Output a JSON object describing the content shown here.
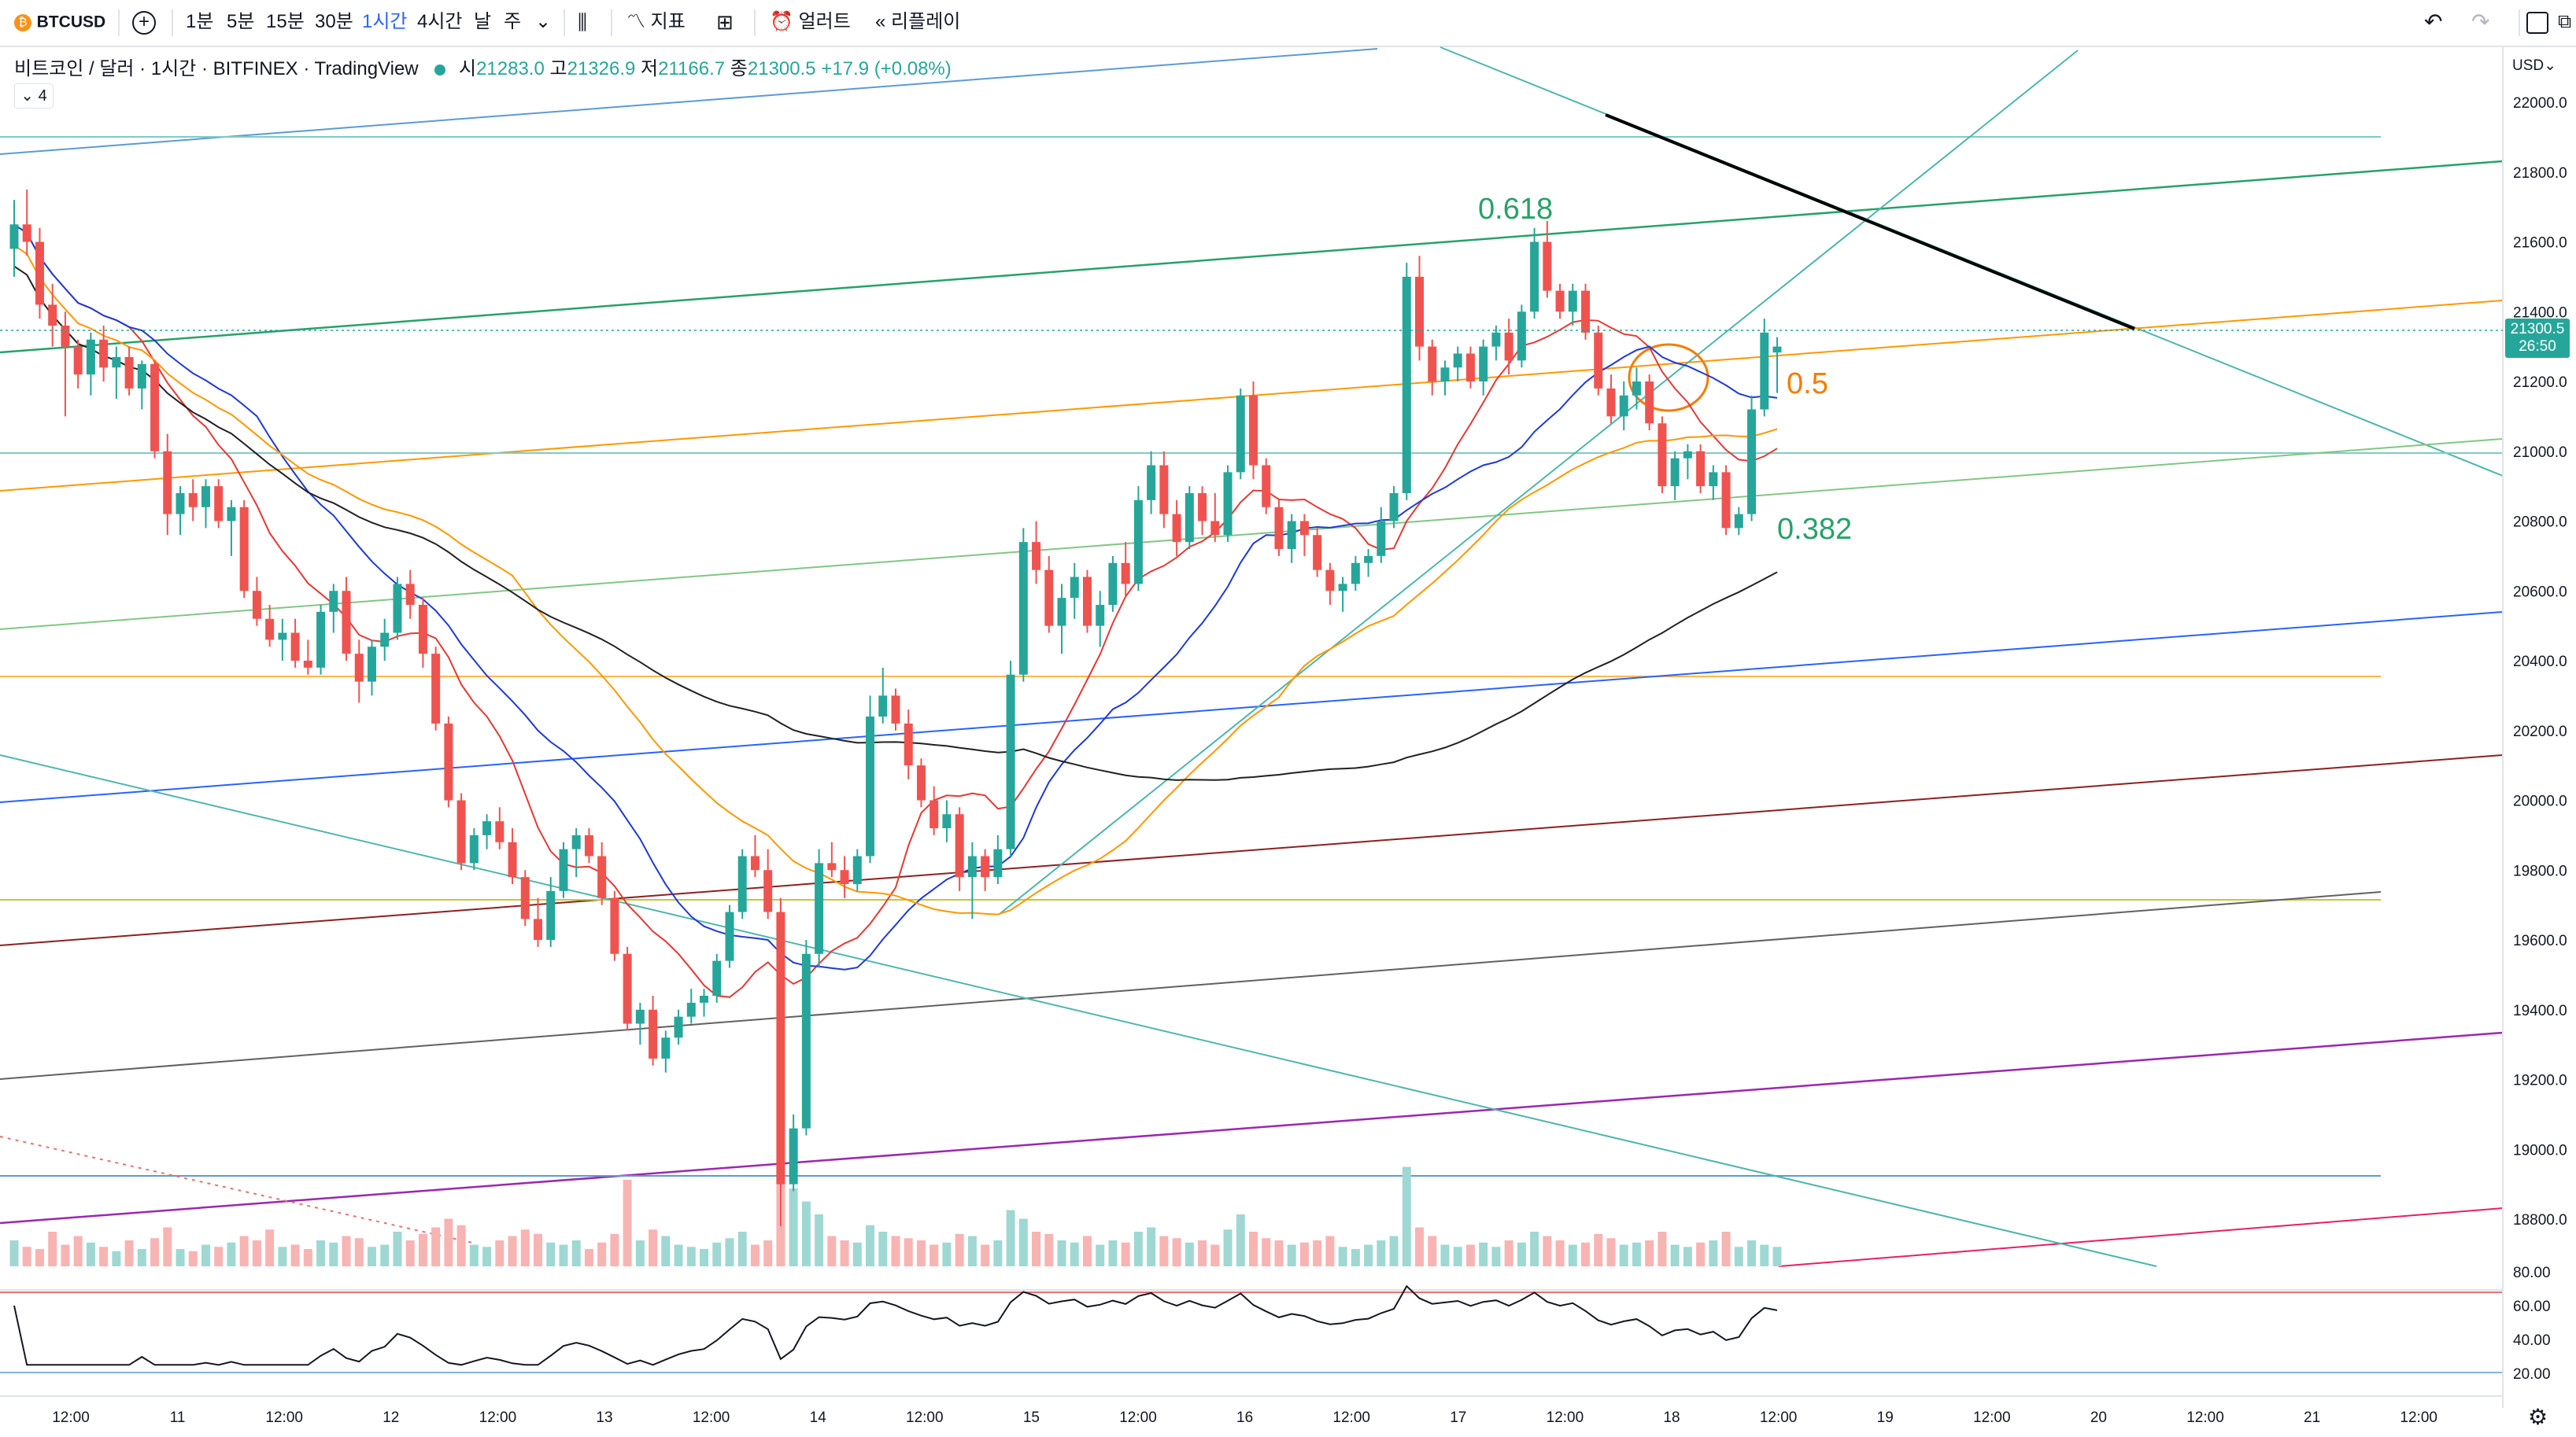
{
  "toolbar": {
    "symbol": "BTCUSD",
    "intervals": [
      "1분",
      "5분",
      "15분",
      "30분",
      "1시간",
      "4시간",
      "날",
      "주"
    ],
    "active_interval": "1시간",
    "indicators_label": "지표",
    "alert_label": "얼러트",
    "replay_label": "리플레이"
  },
  "legend": {
    "title": "비트코인 / 달러 · 1시간 · BITFINEX · TradingView",
    "open": "21283.0",
    "high": "21326.9",
    "low": "21166.7",
    "close": "21300.5",
    "change": "+17.9 (+0.08%)",
    "open_label": "시",
    "high_label": "고",
    "low_label": "저",
    "close_label": "종",
    "indicator_count": "4"
  },
  "price_axis": {
    "currency": "USD",
    "ticks": [
      "22000.0",
      "21800.0",
      "21600.0",
      "21400.0",
      "21200.0",
      "21000.0",
      "20800.0",
      "20600.0",
      "20400.0",
      "20200.0",
      "20000.0",
      "19800.0",
      "19600.0",
      "19400.0",
      "19200.0",
      "19000.0",
      "18800.0"
    ],
    "current_price": "21300.5",
    "countdown": "26:50"
  },
  "rsi_axis": {
    "ticks": [
      "80.00",
      "60.00",
      "40.00",
      "20.00"
    ]
  },
  "time_axis": {
    "labels": [
      "12:00",
      "11",
      "12:00",
      "12",
      "12:00",
      "13",
      "12:00",
      "14",
      "12:00",
      "15",
      "12:00",
      "16",
      "12:00",
      "17",
      "12:00",
      "18",
      "12:00",
      "19",
      "12:00",
      "20",
      "12:00",
      "21",
      "12:00"
    ]
  },
  "annotations": {
    "fib_618": "0.618",
    "fib_5": "0.5",
    "fib_382": "0.382"
  },
  "colors": {
    "up": "#26a69a",
    "down": "#ef5350",
    "accent": "#2962ff",
    "fib_green": "#26a269",
    "fib_orange": "#f57c00"
  },
  "chart_data": {
    "type": "candlestick",
    "ylim": [
      18700,
      22100
    ],
    "candles": [
      [
        21580,
        21720,
        21500,
        21650
      ],
      [
        21650,
        21750,
        21560,
        21600
      ],
      [
        21600,
        21640,
        21380,
        21420
      ],
      [
        21420,
        21480,
        21300,
        21360
      ],
      [
        21360,
        21400,
        21100,
        21300
      ],
      [
        21300,
        21320,
        21180,
        21220
      ],
      [
        21220,
        21340,
        21160,
        21320
      ],
      [
        21320,
        21360,
        21200,
        21240
      ],
      [
        21240,
        21300,
        21150,
        21270
      ],
      [
        21270,
        21300,
        21160,
        21180
      ],
      [
        21180,
        21260,
        21120,
        21250
      ],
      [
        21250,
        21260,
        20980,
        21000
      ],
      [
        21000,
        21050,
        20760,
        20820
      ],
      [
        20820,
        20900,
        20760,
        20880
      ],
      [
        20880,
        20920,
        20800,
        20840
      ],
      [
        20840,
        20920,
        20780,
        20900
      ],
      [
        20900,
        20920,
        20780,
        20800
      ],
      [
        20800,
        20860,
        20700,
        20840
      ],
      [
        20840,
        20860,
        20580,
        20600
      ],
      [
        20600,
        20640,
        20500,
        20520
      ],
      [
        20520,
        20560,
        20440,
        20460
      ],
      [
        20460,
        20520,
        20400,
        20480
      ],
      [
        20480,
        20520,
        20380,
        20400
      ],
      [
        20400,
        20460,
        20360,
        20380
      ],
      [
        20380,
        20560,
        20360,
        20540
      ],
      [
        20540,
        20620,
        20480,
        20600
      ],
      [
        20600,
        20640,
        20400,
        20420
      ],
      [
        20420,
        20460,
        20280,
        20340
      ],
      [
        20340,
        20460,
        20300,
        20440
      ],
      [
        20440,
        20520,
        20400,
        20480
      ],
      [
        20480,
        20640,
        20460,
        20620
      ],
      [
        20620,
        20660,
        20520,
        20560
      ],
      [
        20560,
        20580,
        20380,
        20420
      ],
      [
        20420,
        20440,
        20200,
        20220
      ],
      [
        20220,
        20240,
        19980,
        20000
      ],
      [
        20000,
        20020,
        19800,
        19820
      ],
      [
        19820,
        19920,
        19800,
        19900
      ],
      [
        19900,
        19960,
        19860,
        19940
      ],
      [
        19940,
        19980,
        19860,
        19880
      ],
      [
        19880,
        19920,
        19760,
        19780
      ],
      [
        19780,
        19800,
        19640,
        19660
      ],
      [
        19660,
        19720,
        19580,
        19600
      ],
      [
        19600,
        19780,
        19580,
        19740
      ],
      [
        19740,
        19880,
        19720,
        19860
      ],
      [
        19860,
        19920,
        19780,
        19900
      ],
      [
        19900,
        19920,
        19820,
        19840
      ],
      [
        19840,
        19880,
        19700,
        19720
      ],
      [
        19720,
        19740,
        19540,
        19560
      ],
      [
        19560,
        19580,
        19340,
        19360
      ],
      [
        19360,
        19420,
        19300,
        19400
      ],
      [
        19400,
        19440,
        19240,
        19260
      ],
      [
        19260,
        19340,
        19220,
        19320
      ],
      [
        19320,
        19400,
        19300,
        19380
      ],
      [
        19380,
        19460,
        19360,
        19420
      ],
      [
        19420,
        19460,
        19380,
        19440
      ],
      [
        19440,
        19560,
        19420,
        19540
      ],
      [
        19540,
        19700,
        19520,
        19680
      ],
      [
        19680,
        19860,
        19660,
        19840
      ],
      [
        19840,
        19900,
        19780,
        19800
      ],
      [
        19800,
        19860,
        19660,
        19680
      ],
      [
        19680,
        19720,
        18780,
        18900
      ],
      [
        18900,
        19100,
        18880,
        19060
      ],
      [
        19060,
        19600,
        19040,
        19560
      ],
      [
        19560,
        19860,
        19520,
        19820
      ],
      [
        19820,
        19880,
        19780,
        19800
      ],
      [
        19800,
        19840,
        19720,
        19760
      ],
      [
        19760,
        19860,
        19740,
        19840
      ],
      [
        19840,
        20300,
        19820,
        20240
      ],
      [
        20240,
        20380,
        20220,
        20300
      ],
      [
        20300,
        20320,
        20200,
        20220
      ],
      [
        20220,
        20260,
        20060,
        20100
      ],
      [
        20100,
        20120,
        19980,
        20000
      ],
      [
        20000,
        20040,
        19900,
        19920
      ],
      [
        19920,
        20000,
        19880,
        19960
      ],
      [
        19960,
        19980,
        19740,
        19780
      ],
      [
        19780,
        19880,
        19660,
        19840
      ],
      [
        19840,
        19860,
        19740,
        19780
      ],
      [
        19780,
        19900,
        19760,
        19860
      ],
      [
        19860,
        20400,
        19840,
        20360
      ],
      [
        20360,
        20780,
        20340,
        20740
      ],
      [
        20740,
        20800,
        20620,
        20660
      ],
      [
        20660,
        20700,
        20480,
        20500
      ],
      [
        20500,
        20620,
        20420,
        20580
      ],
      [
        20580,
        20680,
        20520,
        20640
      ],
      [
        20640,
        20660,
        20480,
        20500
      ],
      [
        20500,
        20600,
        20440,
        20560
      ],
      [
        20560,
        20700,
        20540,
        20680
      ],
      [
        20680,
        20740,
        20580,
        20620
      ],
      [
        20620,
        20900,
        20600,
        20860
      ],
      [
        20860,
        21000,
        20820,
        20960
      ],
      [
        20960,
        21000,
        20780,
        20820
      ],
      [
        20820,
        20860,
        20700,
        20740
      ],
      [
        20740,
        20900,
        20720,
        20880
      ],
      [
        20880,
        20900,
        20760,
        20800
      ],
      [
        20800,
        20880,
        20740,
        20760
      ],
      [
        20760,
        20960,
        20740,
        20940
      ],
      [
        20940,
        21180,
        20920,
        21160
      ],
      [
        21160,
        21200,
        20920,
        20960
      ],
      [
        20960,
        20980,
        20820,
        20840
      ],
      [
        20840,
        20860,
        20700,
        20720
      ],
      [
        20720,
        20820,
        20680,
        20800
      ],
      [
        20800,
        20820,
        20700,
        20760
      ],
      [
        20760,
        20780,
        20640,
        20660
      ],
      [
        20660,
        20680,
        20560,
        20600
      ],
      [
        20600,
        20640,
        20540,
        20620
      ],
      [
        20620,
        20700,
        20600,
        20680
      ],
      [
        20680,
        20720,
        20640,
        20700
      ],
      [
        20700,
        20840,
        20680,
        20800
      ],
      [
        20800,
        20900,
        20780,
        20880
      ],
      [
        20880,
        21540,
        20860,
        21500
      ],
      [
        21500,
        21560,
        21260,
        21300
      ],
      [
        21300,
        21320,
        21160,
        21200
      ],
      [
        21200,
        21260,
        21160,
        21240
      ],
      [
        21240,
        21300,
        21200,
        21280
      ],
      [
        21280,
        21300,
        21180,
        21200
      ],
      [
        21200,
        21320,
        21160,
        21300
      ],
      [
        21300,
        21360,
        21260,
        21340
      ],
      [
        21340,
        21380,
        21220,
        21260
      ],
      [
        21260,
        21420,
        21240,
        21400
      ],
      [
        21400,
        21640,
        21380,
        21600
      ],
      [
        21600,
        21660,
        21440,
        21460
      ],
      [
        21460,
        21480,
        21380,
        21400
      ],
      [
        21400,
        21480,
        21360,
        21460
      ],
      [
        21460,
        21480,
        21320,
        21340
      ],
      [
        21340,
        21360,
        21160,
        21180
      ],
      [
        21180,
        21220,
        21080,
        21100
      ],
      [
        21100,
        21200,
        21060,
        21160
      ],
      [
        21160,
        21240,
        21120,
        21200
      ],
      [
        21200,
        21220,
        21060,
        21080
      ],
      [
        21080,
        21100,
        20880,
        20900
      ],
      [
        20900,
        21000,
        20860,
        20980
      ],
      [
        20980,
        21020,
        20920,
        21000
      ],
      [
        21000,
        21020,
        20880,
        20900
      ],
      [
        20900,
        20960,
        20860,
        20940
      ],
      [
        20940,
        20960,
        20760,
        20780
      ],
      [
        20780,
        20840,
        20760,
        20820
      ],
      [
        20820,
        21160,
        20800,
        21120
      ],
      [
        21120,
        21380,
        21100,
        21340
      ],
      [
        21283,
        21327,
        21167,
        21300
      ]
    ],
    "volumes": [
      60,
      45,
      40,
      80,
      50,
      70,
      55,
      45,
      35,
      60,
      40,
      65,
      90,
      40,
      35,
      50,
      45,
      55,
      70,
      60,
      85,
      45,
      50,
      40,
      60,
      55,
      70,
      65,
      45,
      50,
      80,
      60,
      75,
      90,
      110,
      95,
      50,
      45,
      60,
      70,
      85,
      75,
      55,
      50,
      60,
      40,
      55,
      75,
      200,
      60,
      85,
      70,
      50,
      45,
      40,
      55,
      65,
      80,
      50,
      60,
      220,
      180,
      150,
      120,
      70,
      60,
      55,
      95,
      80,
      70,
      65,
      60,
      50,
      55,
      75,
      70,
      50,
      60,
      130,
      110,
      80,
      75,
      60,
      55,
      70,
      50,
      60,
      55,
      80,
      90,
      70,
      65,
      55,
      60,
      50,
      85,
      120,
      80,
      65,
      60,
      50,
      55,
      60,
      70,
      45,
      40,
      50,
      60,
      70,
      230,
      90,
      70,
      50,
      45,
      50,
      55,
      45,
      60,
      55,
      80,
      70,
      60,
      50,
      55,
      75,
      65,
      50,
      55,
      60,
      80,
      50,
      45,
      55,
      60,
      80,
      45,
      60,
      50,
      45
    ]
  }
}
